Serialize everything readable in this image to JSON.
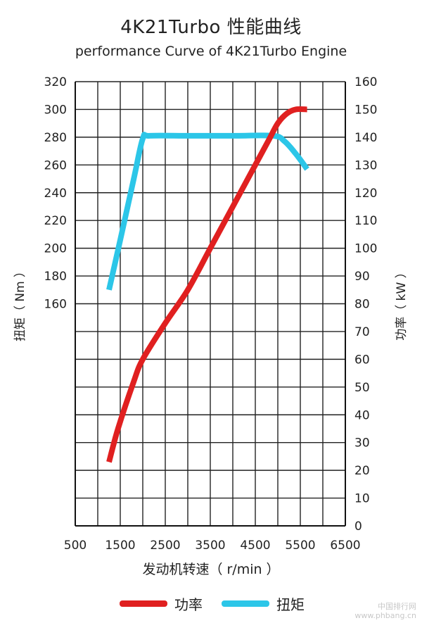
{
  "chart_data": {
    "type": "line",
    "title": "4K21Turbo  性能曲线",
    "subtitle": "performance Curve of 4K21Turbo Engine",
    "xlabel": "发动机转速（ r/min ）",
    "ylabel_left": "扭矩（ Nm ）",
    "ylabel_right": "功率（ kW ）",
    "x_ticks": [
      500,
      1500,
      2500,
      3500,
      4500,
      5500,
      6500
    ],
    "xlim": [
      500,
      6500
    ],
    "y_left_ticks": [
      160,
      180,
      200,
      220,
      240,
      260,
      280,
      300,
      320
    ],
    "y_right_ticks": [
      0,
      10,
      20,
      30,
      40,
      50,
      60,
      70,
      80,
      90,
      100,
      110,
      120,
      130,
      140,
      150,
      160
    ],
    "ylim_right": [
      0,
      160
    ],
    "grid": true,
    "legend_position": "bottom",
    "series": [
      {
        "name": "功率",
        "axis": "right",
        "color": "#e02020",
        "points": [
          [
            1250,
            23
          ],
          [
            1450,
            35
          ],
          [
            1800,
            52
          ],
          [
            2000,
            60
          ],
          [
            2500,
            73
          ],
          [
            3000,
            85
          ],
          [
            3500,
            100
          ],
          [
            4000,
            115
          ],
          [
            4500,
            130
          ],
          [
            4800,
            139
          ],
          [
            5000,
            145
          ],
          [
            5200,
            148.5
          ],
          [
            5400,
            150
          ],
          [
            5650,
            150
          ]
        ]
      },
      {
        "name": "扭矩",
        "axis": "left",
        "color": "#2cc6e8",
        "points": [
          [
            1250,
            170
          ],
          [
            1500,
            206
          ],
          [
            1800,
            250
          ],
          [
            2000,
            279
          ],
          [
            2150,
            281
          ],
          [
            3000,
            281
          ],
          [
            4000,
            281
          ],
          [
            4900,
            281
          ],
          [
            5150,
            277
          ],
          [
            5400,
            268
          ],
          [
            5650,
            257
          ]
        ]
      }
    ]
  },
  "watermark": {
    "line1": "中国排行网",
    "line2": "www.phbang.cn"
  }
}
